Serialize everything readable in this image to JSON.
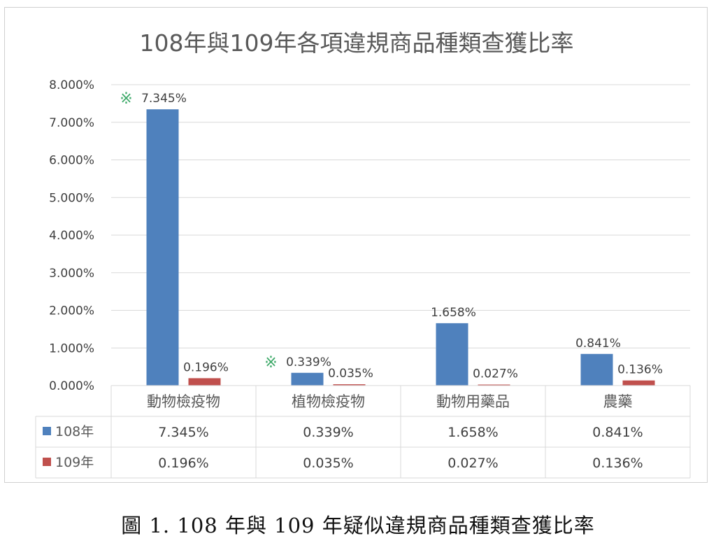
{
  "chart_data": {
    "type": "bar",
    "title": "108年與109年各項違規商品種類查獲比率",
    "categories": [
      "動物檢疫物",
      "植物檢疫物",
      "動物用藥品",
      "農藥"
    ],
    "series": [
      {
        "name": "108年",
        "values": [
          7.345,
          0.339,
          1.658,
          0.841
        ],
        "labels": [
          "7.345%",
          "0.339%",
          "1.658%",
          "0.841%"
        ],
        "color": "#4f81bd"
      },
      {
        "name": "109年",
        "values": [
          0.196,
          0.035,
          0.027,
          0.136
        ],
        "labels": [
          "0.196%",
          "0.035%",
          "0.027%",
          "0.136%"
        ],
        "color": "#c0504d"
      }
    ],
    "ylim": [
      0,
      8
    ],
    "yticks": [
      "0.000%",
      "1.000%",
      "2.000%",
      "3.000%",
      "4.000%",
      "5.000%",
      "6.000%",
      "7.000%",
      "8.000%"
    ],
    "grid": true,
    "data_table": true,
    "annotations": [
      {
        "text": "※",
        "category": "動物檢疫物"
      },
      {
        "text": "※",
        "category": "植物檢疫物"
      }
    ]
  },
  "caption": "圖 1. 108 年與 109 年疑似違規商品種類查獲比率"
}
